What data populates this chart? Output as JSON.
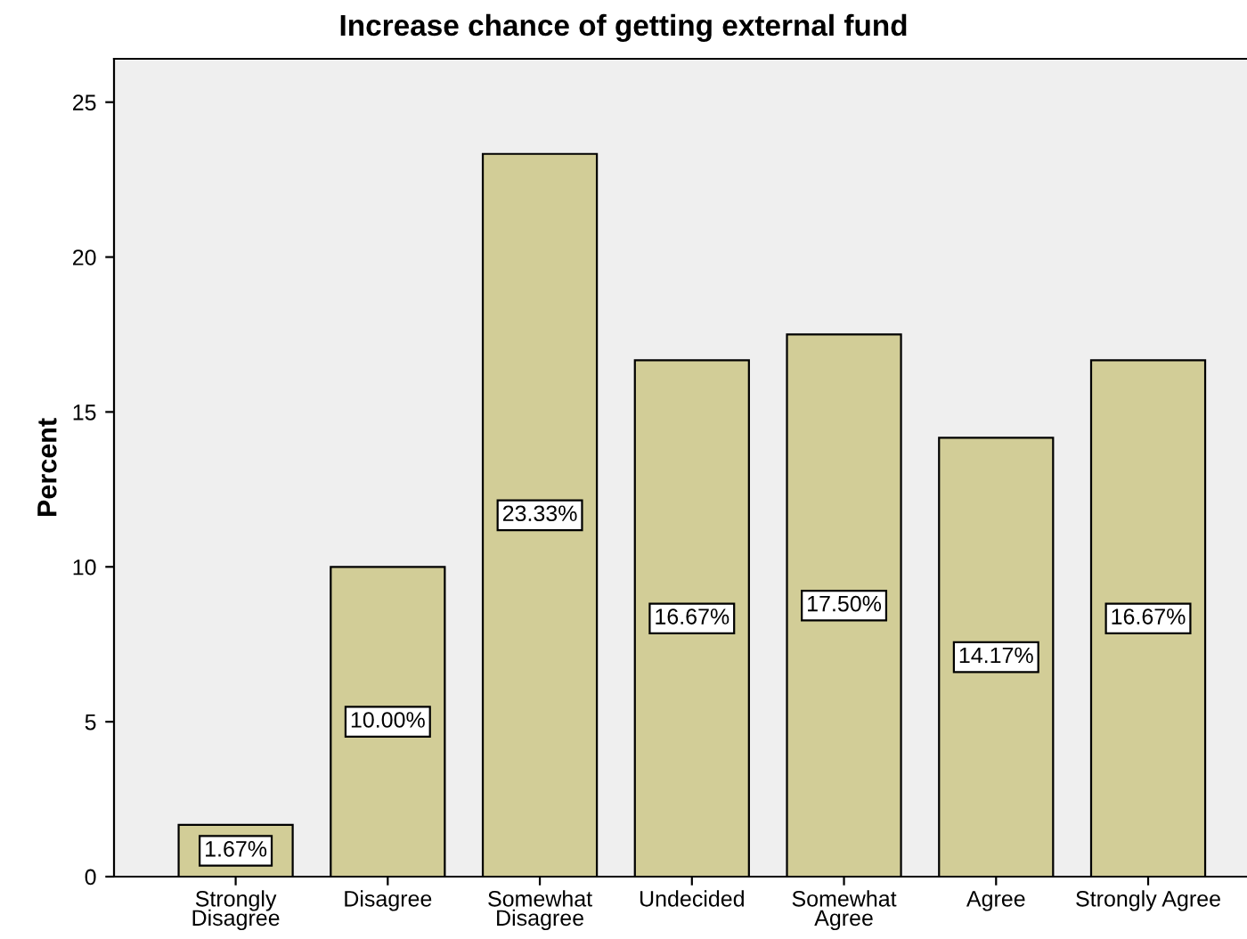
{
  "chart_data": {
    "type": "bar",
    "title": "Increase chance of getting external fund",
    "ylabel": "Percent",
    "categories": [
      "Strongly\nDisagree",
      "Disagree",
      "Somewhat\nDisagree",
      "Undecided",
      "Somewhat\nAgree",
      "Agree",
      "Strongly Agree"
    ],
    "values": [
      1.67,
      10.0,
      23.33,
      16.67,
      17.5,
      14.17,
      16.67
    ],
    "value_labels": [
      "1.67%",
      "10.00%",
      "23.33%",
      "16.67%",
      "17.50%",
      "14.17%",
      "16.67%"
    ],
    "color": "#d2cd97",
    "ylim": [
      0,
      26.4
    ],
    "yticks": [
      0,
      5,
      10,
      15,
      20,
      25
    ],
    "grid": false,
    "legend": false
  }
}
